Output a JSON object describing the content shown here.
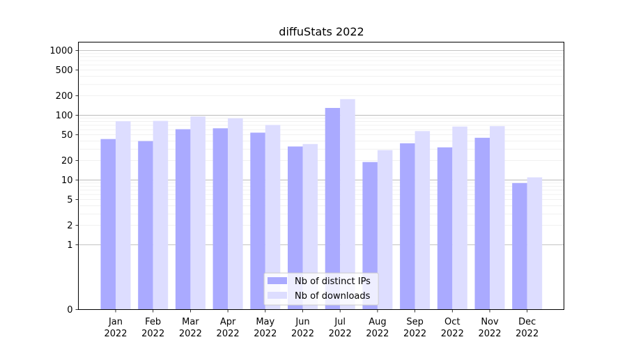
{
  "chart_data": {
    "type": "bar",
    "title": "diffuStats 2022",
    "xlabel": "",
    "ylabel": "",
    "y_scale": "symlog",
    "ylim": [
      0,
      1300
    ],
    "grid": "horizontal major and minor",
    "legend_position": "bottom-center",
    "categories": [
      [
        "Jan",
        "2022"
      ],
      [
        "Feb",
        "2022"
      ],
      [
        "Mar",
        "2022"
      ],
      [
        "Apr",
        "2022"
      ],
      [
        "May",
        "2022"
      ],
      [
        "Jun",
        "2022"
      ],
      [
        "Jul",
        "2022"
      ],
      [
        "Aug",
        "2022"
      ],
      [
        "Sep",
        "2022"
      ],
      [
        "Oct",
        "2022"
      ],
      [
        "Nov",
        "2022"
      ],
      [
        "Dec",
        "2022"
      ]
    ],
    "series": [
      {
        "name": "Nb of distinct IPs",
        "color": "#aaaaff",
        "values": [
          43,
          40,
          61,
          63,
          54,
          33,
          130,
          19,
          37,
          32,
          45,
          9
        ]
      },
      {
        "name": "Nb of downloads",
        "color": "#ddddff",
        "values": [
          81,
          82,
          96,
          90,
          71,
          36,
          178,
          29,
          57,
          67,
          68,
          11
        ]
      }
    ],
    "y_ticks": [
      "0",
      "1",
      "2",
      "5",
      "10",
      "20",
      "50",
      "100",
      "200",
      "500",
      "1000"
    ]
  }
}
